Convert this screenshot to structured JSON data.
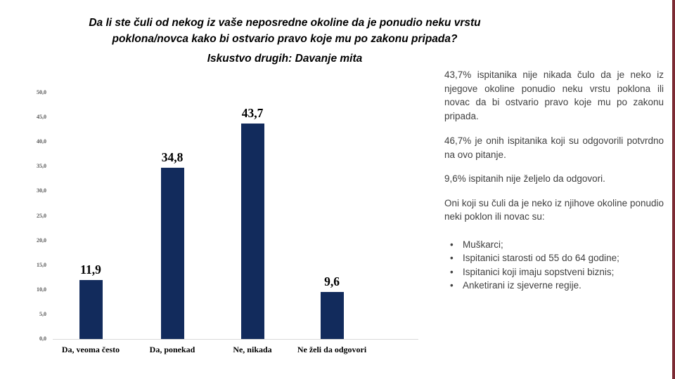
{
  "slide": {
    "title_lines": [
      "Da li ste čuli od nekog iz vaše neposredne okoline da je ponudio neku vrstu",
      "poklona/novca kako bi ostvario pravo koje mu po zakonu pripada?"
    ],
    "subtitle": "Iskustvo drugih: Davanje mita"
  },
  "chart_data": {
    "type": "bar",
    "title": "Iskustvo drugih: Davanje mita",
    "categories": [
      "Da, veoma često",
      "Da, ponekad",
      "Ne, nikada",
      "Ne želi da odgovori"
    ],
    "values": [
      11.9,
      34.8,
      43.7,
      9.6
    ],
    "value_labels": [
      "11,9",
      "34,8",
      "43,7",
      "9,6"
    ],
    "y_ticks": [
      "0,0",
      "5,0",
      "10,0",
      "15,0",
      "20,0",
      "25,0",
      "30,0",
      "35,0",
      "40,0",
      "45,0",
      "50,0"
    ],
    "ylim": [
      0,
      50
    ],
    "xlabel": "",
    "ylabel": "",
    "grid": false,
    "legend": false,
    "bar_color": "#122b5c",
    "axis_color": "#d9d9d9"
  },
  "side_text": {
    "p1": "43,7% ispitanika nije nikada čulo da je neko iz njegove okoline ponudio neku vrstu poklona ili novac da bi ostvario pravo koje mu po zakonu pripada.",
    "p2": "46,7% je onih ispitanika koji su odgovorili potvrdno na ovo pitanje.",
    "p3": "9,6% ispitanih nije željelo da odgovori.",
    "p4": "Oni koji su čuli da je neko iz njihove okoline ponudio neki poklon ili novac su:",
    "bullet_char": "•",
    "bullets": [
      "Muškarci;",
      "Ispitanici starosti od 55 do 64 godine;",
      "Ispitanici koji imaju sopstveni biznis;",
      "Anketirani iz sjeverne regije."
    ]
  },
  "accent": {
    "edge_strip_color": "#7b2a33"
  }
}
